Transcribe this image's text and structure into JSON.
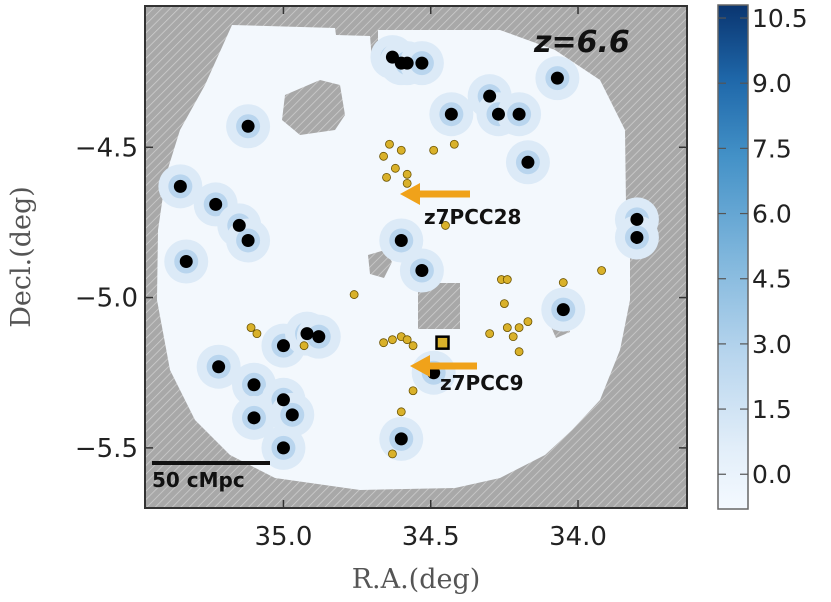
{
  "chart_data": {
    "type": "scatter",
    "title": "",
    "xlabel": "R.A.(deg)",
    "ylabel": "Decl.(deg)",
    "xlim": [
      35.47,
      33.63
    ],
    "ylim": [
      -5.7,
      -4.03
    ],
    "x_ticks": [
      35.0,
      34.5,
      34.0
    ],
    "x_tick_labels": [
      "35.0",
      "34.5",
      "34.0"
    ],
    "y_ticks": [
      -4.5,
      -5.0,
      -5.5
    ],
    "y_tick_labels": [
      "−4.5",
      "−5.0",
      "−5.5"
    ],
    "redshift_label": "z=6.6",
    "scale_bar_label": "50 cMpc",
    "colorbar": {
      "min": -0.8,
      "max": 10.8,
      "ticks": [
        10.5,
        9.0,
        7.5,
        6.0,
        4.5,
        3.0,
        1.5,
        0.0
      ],
      "tick_labels": [
        "10.5",
        "9.0",
        "7.5",
        "6.0",
        "4.5",
        "3.0",
        "1.5",
        "0.0"
      ]
    },
    "annotations": [
      {
        "text": "z7PCC28",
        "x": 34.58,
        "y": -4.62
      },
      {
        "text": "z7PCC9",
        "x": 34.5,
        "y": -5.15
      }
    ],
    "series": [
      {
        "marker": "black-dot",
        "points": [
          [
            34.63,
            -4.2
          ],
          [
            34.6,
            -4.22
          ],
          [
            34.58,
            -4.22
          ],
          [
            34.53,
            -4.22
          ],
          [
            34.07,
            -4.27
          ],
          [
            34.3,
            -4.33
          ],
          [
            34.27,
            -4.39
          ],
          [
            34.2,
            -4.39
          ],
          [
            34.43,
            -4.39
          ],
          [
            35.12,
            -4.43
          ],
          [
            34.17,
            -4.55
          ],
          [
            35.35,
            -4.63
          ],
          [
            35.23,
            -4.69
          ],
          [
            35.15,
            -4.76
          ],
          [
            35.12,
            -4.81
          ],
          [
            34.6,
            -4.81
          ],
          [
            34.53,
            -4.91
          ],
          [
            35.33,
            -4.88
          ],
          [
            33.8,
            -4.74
          ],
          [
            33.8,
            -4.8
          ],
          [
            34.05,
            -5.04
          ],
          [
            35.0,
            -5.16
          ],
          [
            34.92,
            -5.12
          ],
          [
            34.88,
            -5.13
          ],
          [
            35.22,
            -5.23
          ],
          [
            35.1,
            -5.29
          ],
          [
            35.0,
            -5.34
          ],
          [
            34.97,
            -5.39
          ],
          [
            35.1,
            -5.4
          ],
          [
            35.0,
            -5.5
          ],
          [
            34.6,
            -5.47
          ],
          [
            34.49,
            -5.25
          ]
        ]
      },
      {
        "marker": "yellow-dot",
        "points": [
          [
            34.64,
            -4.49
          ],
          [
            34.6,
            -4.51
          ],
          [
            34.66,
            -4.53
          ],
          [
            34.65,
            -4.6
          ],
          [
            34.62,
            -4.57
          ],
          [
            34.58,
            -4.59
          ],
          [
            34.58,
            -4.62
          ],
          [
            34.42,
            -4.49
          ],
          [
            34.49,
            -4.51
          ],
          [
            34.45,
            -4.76
          ],
          [
            35.11,
            -5.1
          ],
          [
            35.09,
            -5.12
          ],
          [
            34.93,
            -5.16
          ],
          [
            34.76,
            -4.99
          ],
          [
            34.66,
            -5.15
          ],
          [
            34.63,
            -5.14
          ],
          [
            34.6,
            -5.13
          ],
          [
            34.58,
            -5.14
          ],
          [
            34.56,
            -5.16
          ],
          [
            34.56,
            -5.31
          ],
          [
            34.6,
            -5.38
          ],
          [
            34.63,
            -5.52
          ],
          [
            34.26,
            -4.94
          ],
          [
            34.24,
            -4.94
          ],
          [
            34.25,
            -5.02
          ],
          [
            34.24,
            -5.1
          ],
          [
            34.22,
            -5.13
          ],
          [
            34.2,
            -5.1
          ],
          [
            34.2,
            -5.18
          ],
          [
            34.3,
            -5.12
          ],
          [
            34.05,
            -4.95
          ],
          [
            33.92,
            -4.91
          ],
          [
            34.17,
            -5.08
          ]
        ]
      },
      {
        "marker": "black-square",
        "points": [
          [
            34.46,
            -5.15
          ]
        ]
      }
    ]
  }
}
